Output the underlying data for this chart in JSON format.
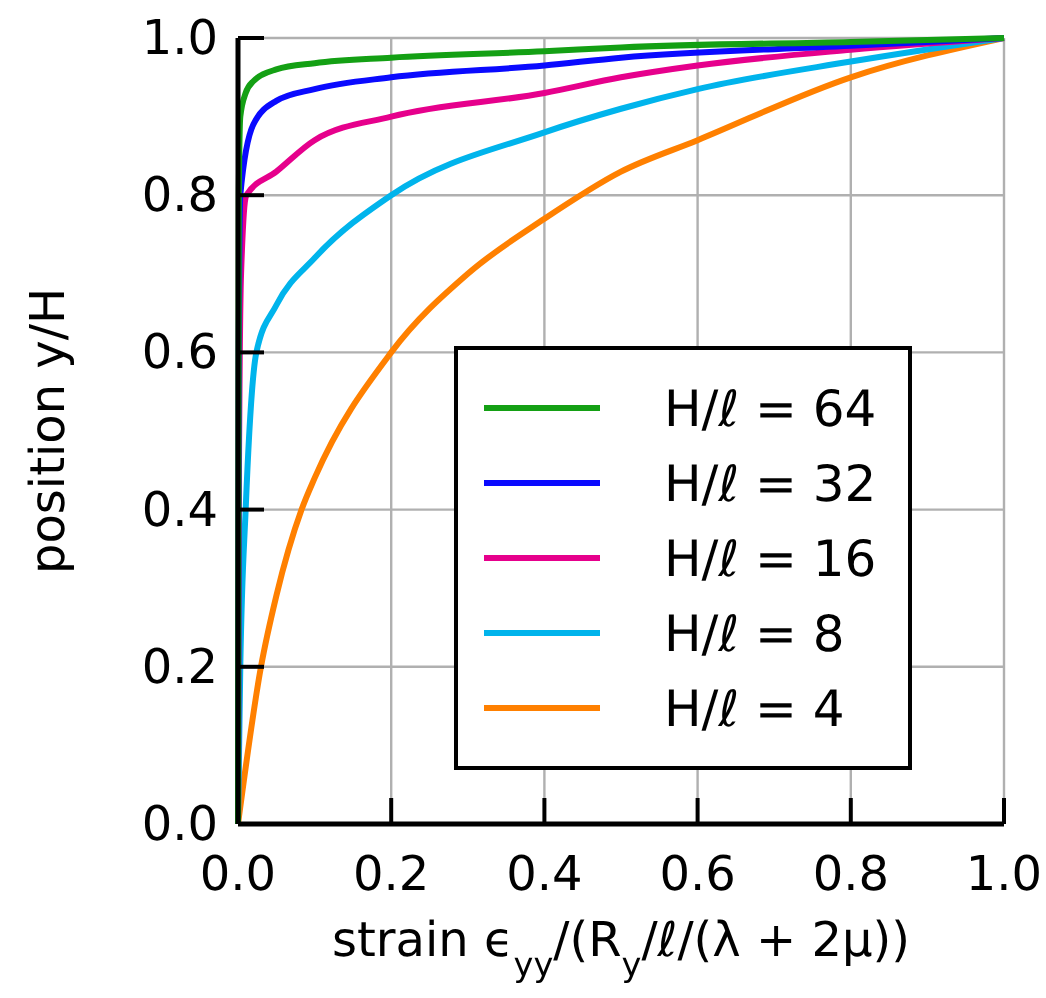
{
  "chart_data": {
    "type": "line",
    "xlabel": "strain ϵ$_{yy}$/(R$_{y}$/ℓ/(λ + 2μ))",
    "ylabel": "position y/H",
    "xlim": [
      0,
      1
    ],
    "ylim": [
      0,
      1
    ],
    "xticks": [
      {
        "value": 0,
        "label": "0.0"
      },
      {
        "value": 0.2,
        "label": "0.2"
      },
      {
        "value": 0.4,
        "label": "0.4"
      },
      {
        "value": 0.6,
        "label": "0.6"
      },
      {
        "value": 0.8,
        "label": "0.8"
      },
      {
        "value": 1,
        "label": "1.0"
      }
    ],
    "yticks": [
      {
        "value": 0,
        "label": "0.0"
      },
      {
        "value": 0.2,
        "label": "0.2"
      },
      {
        "value": 0.4,
        "label": "0.4"
      },
      {
        "value": 0.6,
        "label": "0.6"
      },
      {
        "value": 0.8,
        "label": "0.8"
      },
      {
        "value": 1,
        "label": "1.0"
      }
    ],
    "grid": true,
    "legend": "bottom right",
    "marker": "none",
    "line_style": "solid",
    "series": [
      {
        "name": "H/ℓ = 64",
        "color": "#14a014",
        "x": [
          0,
          0.001,
          0.003,
          0.01,
          0.02,
          0.05,
          0.1,
          0.2,
          0.4,
          0.5,
          0.8,
          1
        ],
        "values": [
          0,
          0.8,
          0.9,
          0.93,
          0.945,
          0.96,
          0.968,
          0.975,
          0.983,
          0.988,
          0.995,
          1
        ]
      },
      {
        "name": "H/ℓ = 32",
        "color": "#0a0aff",
        "x": [
          0,
          0.001,
          0.003,
          0.02,
          0.05,
          0.1,
          0.2,
          0.4,
          0.5,
          0.8,
          1
        ],
        "values": [
          0,
          0.6,
          0.8,
          0.89,
          0.92,
          0.935,
          0.95,
          0.965,
          0.975,
          0.99,
          1
        ]
      },
      {
        "name": "H/ℓ = 16",
        "color": "#e6008c",
        "x": [
          0,
          0.001,
          0.004,
          0.011,
          0.05,
          0.1,
          0.2,
          0.4,
          0.5,
          0.6,
          0.8,
          1
        ],
        "values": [
          0,
          0.4,
          0.7,
          0.8,
          0.83,
          0.87,
          0.9,
          0.93,
          0.95,
          0.965,
          0.985,
          1
        ]
      },
      {
        "name": "H/ℓ = 8",
        "color": "#00b4ec",
        "x": [
          0,
          0.003,
          0.01,
          0.024,
          0.05,
          0.1,
          0.2,
          0.4,
          0.5,
          0.6,
          0.8,
          1
        ],
        "values": [
          0,
          0.2,
          0.4,
          0.6,
          0.66,
          0.72,
          0.8,
          0.88,
          0.91,
          0.935,
          0.97,
          1
        ]
      },
      {
        "name": "H/ℓ = 4",
        "color": "#ff8000",
        "x": [
          0,
          0.03,
          0.05,
          0.083,
          0.1,
          0.2,
          0.3,
          0.4,
          0.5,
          0.6,
          0.8,
          1
        ],
        "values": [
          0,
          0.2,
          0.29,
          0.4,
          0.44,
          0.6,
          0.7,
          0.77,
          0.83,
          0.87,
          0.95,
          1
        ]
      }
    ]
  }
}
